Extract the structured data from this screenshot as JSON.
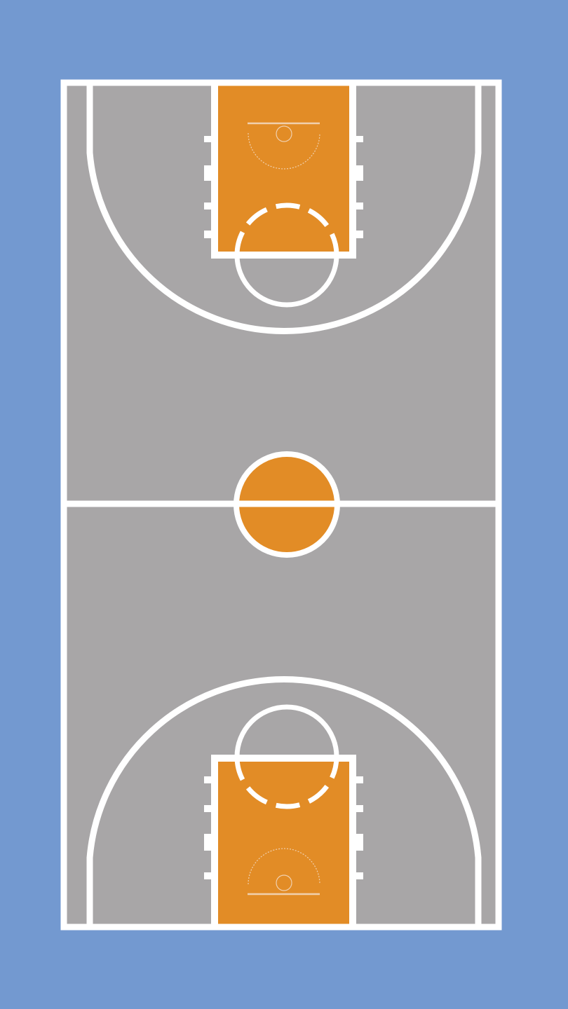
{
  "diagram": {
    "type": "basketball-court",
    "orientation": "vertical",
    "halves": 2,
    "colors": {
      "background": "#7399D0",
      "court_floor": "#A8A6A7",
      "paint_and_center": "#E28C26",
      "lines": "#FFFFFF",
      "hoop_details": "#F1D0AE"
    }
  }
}
